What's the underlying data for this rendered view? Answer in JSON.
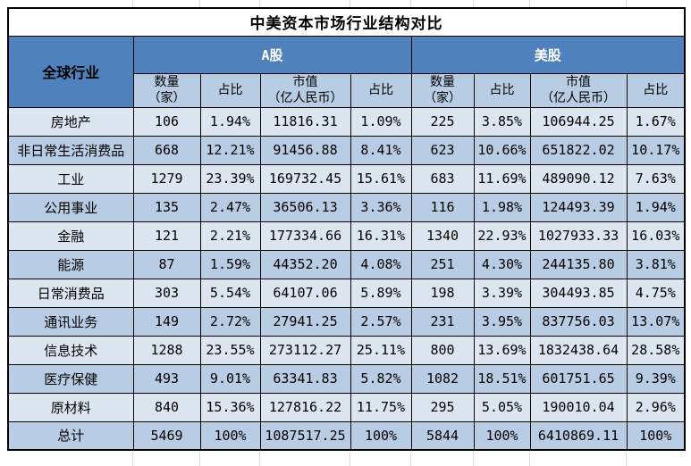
{
  "title": "中美资本市场行业结构对比",
  "table": {
    "corner_header": "全球行业",
    "group_a_label": "A股",
    "group_us_label": "美股",
    "sub_headers": [
      "数量\n（家）",
      "占比",
      "市值\n（亿人民币）",
      "占比",
      "数量\n（家）",
      "占比",
      "市值\n（亿人民币）",
      "占比"
    ],
    "rows": [
      {
        "industry": "房地产",
        "cells": [
          "106",
          "1.94%",
          "11816.31",
          "1.09%",
          "225",
          "3.85%",
          "106944.25",
          "1.67%"
        ]
      },
      {
        "industry": "非日常生活消费品",
        "cells": [
          "668",
          "12.21%",
          "91456.88",
          "8.41%",
          "623",
          "10.66%",
          "651822.02",
          "10.17%"
        ]
      },
      {
        "industry": "工业",
        "cells": [
          "1279",
          "23.39%",
          "169732.45",
          "15.61%",
          "683",
          "11.69%",
          "489090.12",
          "7.63%"
        ]
      },
      {
        "industry": "公用事业",
        "cells": [
          "135",
          "2.47%",
          "36506.13",
          "3.36%",
          "116",
          "1.98%",
          "124493.39",
          "1.94%"
        ]
      },
      {
        "industry": "金融",
        "cells": [
          "121",
          "2.21%",
          "177334.66",
          "16.31%",
          "1340",
          "22.93%",
          "1027933.33",
          "16.03%"
        ]
      },
      {
        "industry": "能源",
        "cells": [
          "87",
          "1.59%",
          "44352.20",
          "4.08%",
          "251",
          "4.30%",
          "244135.80",
          "3.81%"
        ]
      },
      {
        "industry": "日常消费品",
        "cells": [
          "303",
          "5.54%",
          "64107.06",
          "5.89%",
          "198",
          "3.39%",
          "304493.85",
          "4.75%"
        ]
      },
      {
        "industry": "通讯业务",
        "cells": [
          "149",
          "2.72%",
          "27941.25",
          "2.57%",
          "231",
          "3.95%",
          "837756.03",
          "13.07%"
        ]
      },
      {
        "industry": "信息技术",
        "cells": [
          "1288",
          "23.55%",
          "273112.27",
          "25.11%",
          "800",
          "13.69%",
          "1832438.64",
          "28.58%"
        ]
      },
      {
        "industry": "医疗保健",
        "cells": [
          "493",
          "9.01%",
          "63341.83",
          "5.82%",
          "1082",
          "18.51%",
          "601751.65",
          "9.39%"
        ]
      },
      {
        "industry": "原材料",
        "cells": [
          "840",
          "15.36%",
          "127816.22",
          "11.75%",
          "295",
          "5.05%",
          "190010.04",
          "2.96%"
        ]
      },
      {
        "industry": "总计",
        "cells": [
          "5469",
          "100%",
          "1087517.25",
          "100%",
          "5844",
          "100%",
          "6410869.11",
          "100%"
        ]
      }
    ]
  },
  "colors": {
    "header_blue": "#4F81BD",
    "row_light": "#DCE6F1",
    "row_dark": "#B8CCE4",
    "border": "#000000",
    "group_text": "#FFFFFF",
    "title_text": "#000000",
    "margin_gridline": "#D9D9D9"
  }
}
